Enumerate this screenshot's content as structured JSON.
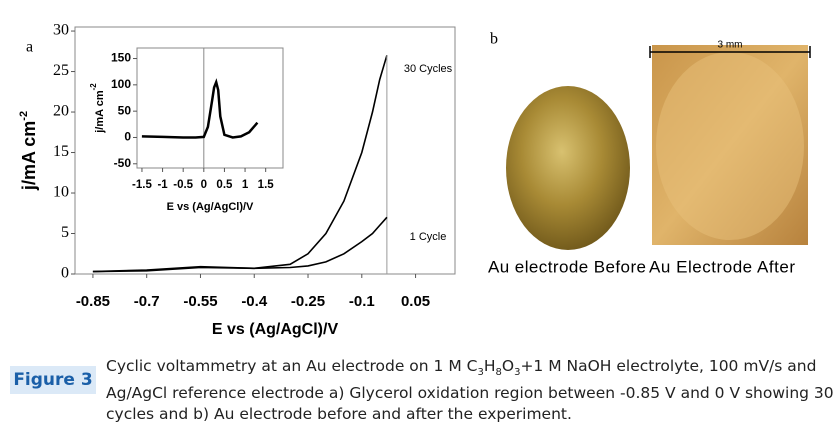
{
  "panel_labels": [
    "a",
    "b"
  ],
  "chart_data": [
    {
      "type": "line",
      "ylabel": "j/mA cm",
      "ylabel_sup": "-2",
      "xlabel": "E vs (Ag/AgCl)/V",
      "x": [
        -0.85,
        -0.7,
        -0.55,
        -0.4,
        -0.3,
        -0.25,
        -0.2,
        -0.15,
        -0.1,
        -0.07,
        -0.05,
        -0.03
      ],
      "series": [
        {
          "name": "30 Cycles",
          "color": "#000000",
          "values": [
            0.3,
            0.5,
            0.9,
            0.7,
            1.2,
            2.5,
            5,
            9,
            15,
            20,
            24,
            27
          ]
        },
        {
          "name": "1 Cycle",
          "color": "#000000",
          "values": [
            0.3,
            0.4,
            0.8,
            0.7,
            0.8,
            1.0,
            1.5,
            2.5,
            4,
            5,
            6,
            7
          ]
        }
      ],
      "xlim": [
        -0.9,
        0.16
      ],
      "ylim": [
        0,
        30.5
      ],
      "xticks": [
        -0.85,
        -0.7,
        -0.55,
        -0.4,
        -0.25,
        -0.1,
        0.05
      ],
      "yticks": [
        0,
        5,
        10,
        15,
        20,
        25,
        30
      ]
    },
    {
      "type": "line",
      "ylabel": "j/mA cm",
      "ylabel_sup": "-2",
      "xlabel": "E vs (Ag/AgCl)/V",
      "x": [
        -1.5,
        -1,
        -0.5,
        -0.2,
        0,
        0.1,
        0.2,
        0.25,
        0.3,
        0.35,
        0.4,
        0.5,
        0.7,
        0.9,
        1.1,
        1.3
      ],
      "series": [
        {
          "color": "#000000",
          "values": [
            2,
            1,
            0,
            0,
            1,
            20,
            70,
            95,
            105,
            90,
            40,
            5,
            0,
            2,
            10,
            28
          ]
        }
      ],
      "xlim": [
        -1.62,
        1.92
      ],
      "ylim": [
        -58,
        170
      ],
      "xticks": [
        -1.5,
        -1,
        -0.5,
        0,
        0.5,
        1,
        1.5
      ],
      "yticks": [
        -50,
        0,
        50,
        100,
        150
      ]
    }
  ],
  "photos": {
    "scale": "3 mm",
    "labels": [
      "Au electrode Before",
      "Au Electrode After"
    ]
  },
  "caption": {
    "label": "Figure 3",
    "parts": [
      "Cyclic voltammetry at an Au electrode on 1 M C",
      "3",
      "H",
      "8",
      "O",
      "3",
      "+1 M NaOH electrolyte, 100 mV/s and Ag/AgCl reference electrode  a) Glycerol oxidation region between -0.85 V and 0 V showing 30 cycles and b) Au electrode before and after the experiment."
    ]
  }
}
